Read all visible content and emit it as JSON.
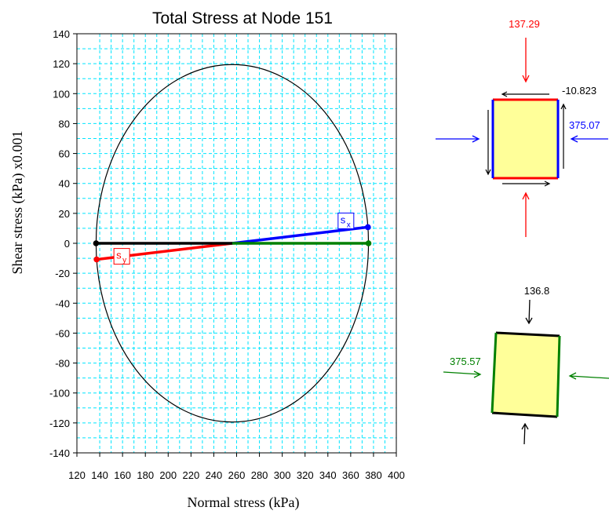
{
  "chart_data": {
    "type": "scatter",
    "title": "Total Stress at Node 151",
    "xlabel": "Normal stress (kPa)",
    "ylabel": "Shear stress (kPa) x0.001",
    "xlim": [
      120,
      400
    ],
    "ylim": [
      -140,
      140
    ],
    "x_ticks": [
      "120",
      "140",
      "160",
      "180",
      "200",
      "220",
      "240",
      "260",
      "280",
      "300",
      "320",
      "340",
      "360",
      "380",
      "400"
    ],
    "y_ticks": [
      "140",
      "120",
      "100",
      "80",
      "60",
      "40",
      "20",
      "0",
      "-20",
      "-40",
      "-60",
      "-80",
      "-100",
      "-120",
      "-140"
    ],
    "grid": true,
    "mohr_circle": {
      "center": [
        256.2,
        0
      ],
      "radius": 119.4
    },
    "points": [
      {
        "label": "sy",
        "x": 137.3,
        "y": -10.8
      },
      {
        "label": "sx",
        "x": 375.1,
        "y": 10.8
      },
      {
        "label": "",
        "x": 136.8,
        "y": 0
      },
      {
        "label": "",
        "x": 375.6,
        "y": 0
      }
    ],
    "lines": [
      {
        "from": [
          256.2,
          0
        ],
        "to": [
          137.3,
          -10.8
        ],
        "color": "#ff0000"
      },
      {
        "from": [
          256.2,
          0
        ],
        "to": [
          375.1,
          10.8
        ],
        "color": "#0000ff"
      },
      {
        "from": [
          136.8,
          0
        ],
        "to": [
          256.2,
          0
        ],
        "color": "#000000"
      },
      {
        "from": [
          256.2,
          0
        ],
        "to": [
          375.6,
          0
        ],
        "color": "#008000"
      }
    ],
    "circle_color": "#000000",
    "grid_color": "#00e5ff"
  },
  "element_top": {
    "sigma_y": "137.29",
    "sigma_x": "375.07",
    "tau": "-10.823",
    "face_fill": "#ffff99"
  },
  "element_bottom": {
    "sigma_1": "136.8",
    "sigma_3": "375.57"
  }
}
